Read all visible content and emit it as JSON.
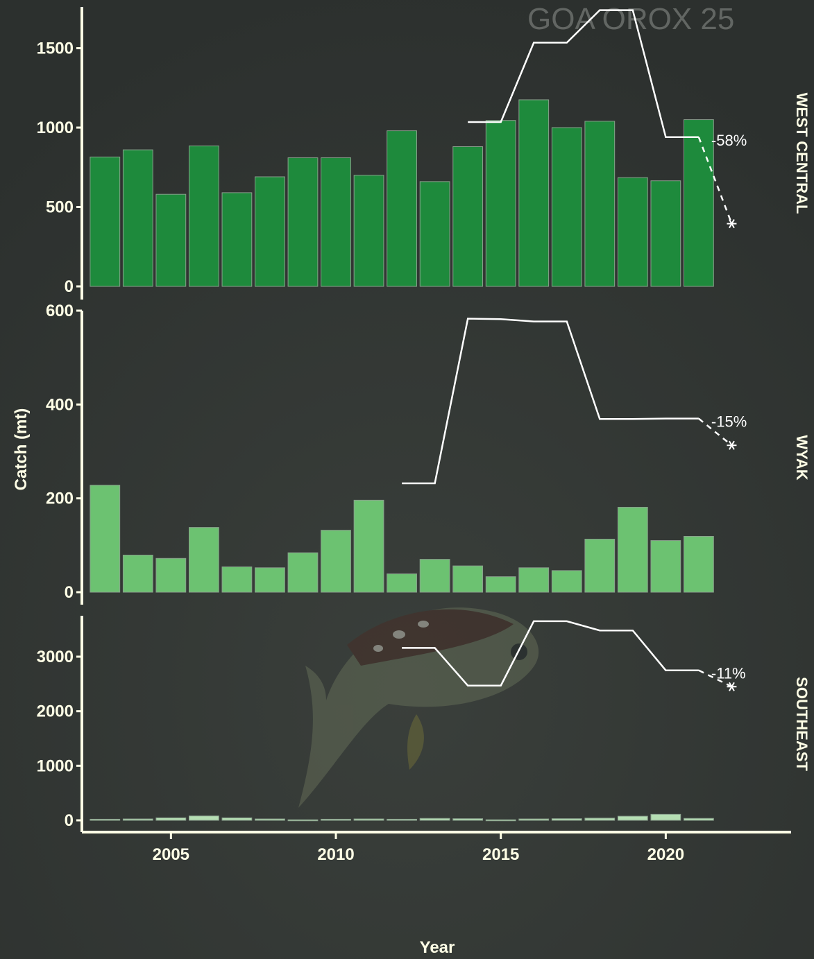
{
  "header": {
    "text": "GOA OROX 25"
  },
  "colors": {
    "axis": "#ffffe6",
    "catch_line": "#ffffff",
    "bars": [
      "#1e8a3c",
      "#6cc271",
      "#b5deb3"
    ]
  },
  "icons": {
    "projection_marker": "asterisk-icon"
  },
  "chart_data": {
    "type": "bar",
    "xlabel": "Year",
    "ylabel": "Catch (mt)",
    "x": [
      2003,
      2004,
      2005,
      2006,
      2007,
      2008,
      2009,
      2010,
      2011,
      2012,
      2013,
      2014,
      2015,
      2016,
      2017,
      2018,
      2019,
      2020,
      2021
    ],
    "xlim": [
      2002.3,
      2023.8
    ],
    "xticks": [
      2005,
      2010,
      2015,
      2020
    ],
    "panels": [
      {
        "name": "WEST CENTRAL",
        "ylim": [
          0,
          1760
        ],
        "yticks": [
          0,
          500,
          1000,
          1500
        ],
        "bars": [
          815,
          860,
          580,
          885,
          590,
          690,
          810,
          810,
          700,
          980,
          660,
          880,
          1045,
          1175,
          1000,
          1040,
          685,
          665,
          1050
        ],
        "line": {
          "x": [
            2014,
            2015,
            2016,
            2017,
            2018,
            2019,
            2020,
            2021
          ],
          "values": [
            1035,
            1035,
            1535,
            1535,
            1740,
            1740,
            940,
            940
          ]
        },
        "projection": {
          "x": 2022,
          "value": 395
        },
        "change_label": "-58%"
      },
      {
        "name": "WYAK",
        "ylim": [
          0,
          600
        ],
        "yticks": [
          0,
          200,
          400,
          600
        ],
        "bars": [
          228,
          79,
          72,
          138,
          54,
          52,
          84,
          132,
          196,
          39,
          70,
          56,
          33,
          52,
          46,
          113,
          181,
          110,
          119
        ],
        "line": {
          "x": [
            2012,
            2013,
            2014,
            2015,
            2016,
            2017,
            2018,
            2019,
            2020,
            2021
          ],
          "values": [
            232,
            232,
            583,
            582,
            577,
            577,
            369,
            369,
            370,
            370
          ]
        },
        "projection": {
          "x": 2022,
          "value": 313
        },
        "change_label": "-15%"
      },
      {
        "name": "SOUTHEAST",
        "ylim": [
          0,
          3750
        ],
        "yticks": [
          0,
          1000,
          2000,
          3000
        ],
        "bars": [
          20,
          25,
          45,
          80,
          45,
          25,
          10,
          20,
          25,
          20,
          35,
          30,
          10,
          25,
          30,
          40,
          75,
          110,
          35
        ],
        "line": {
          "x": [
            2012,
            2013,
            2014,
            2015,
            2016,
            2017,
            2018,
            2019,
            2020,
            2021
          ],
          "values": [
            3160,
            3160,
            2470,
            2470,
            3650,
            3650,
            3480,
            3480,
            2750,
            2750
          ]
        },
        "projection": {
          "x": 2022,
          "value": 2450
        },
        "change_label": "-11%"
      }
    ]
  }
}
